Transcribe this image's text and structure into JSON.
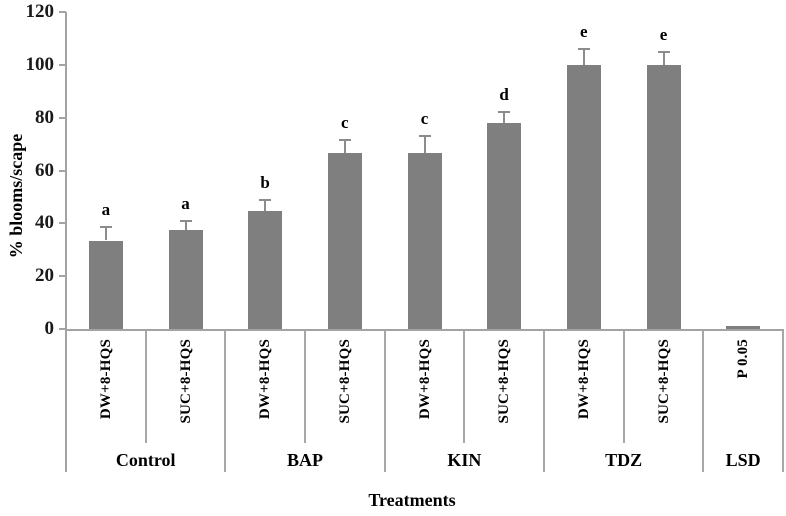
{
  "chart_data": {
    "type": "bar",
    "title": "",
    "ylabel": "% blooms/scape",
    "xlabel": "Treatments",
    "ylim": [
      0,
      120
    ],
    "yticks": [
      0,
      20,
      40,
      60,
      80,
      100,
      120
    ],
    "grid": false,
    "legend": "none",
    "bar_color": "#7f7f7f",
    "error_bar_color": "#8c8c8c",
    "axis_color": "#a3a3a3",
    "groups": [
      {
        "name": "Control",
        "bars": [
          {
            "label": "DW+8-HQS",
            "value": 33.5,
            "error": 5,
            "letter": "a"
          },
          {
            "label": "SUC+8-HQS",
            "value": 37.5,
            "error": 3.5,
            "letter": "a"
          }
        ]
      },
      {
        "name": "BAP",
        "bars": [
          {
            "label": "DW+8-HQS",
            "value": 44.5,
            "error": 4.5,
            "letter": "b"
          },
          {
            "label": "SUC+8-HQS",
            "value": 66.7,
            "error": 5,
            "letter": "c"
          }
        ]
      },
      {
        "name": "KIN",
        "bars": [
          {
            "label": "DW+8-HQS",
            "value": 66.7,
            "error": 6.5,
            "letter": "c"
          },
          {
            "label": "SUC+8-HQS",
            "value": 78,
            "error": 4,
            "letter": "d"
          }
        ]
      },
      {
        "name": "TDZ",
        "bars": [
          {
            "label": "DW+8-HQS",
            "value": 100,
            "error": 6,
            "letter": "e"
          },
          {
            "label": "SUC+8-HQS",
            "value": 100,
            "error": 5,
            "letter": "e"
          }
        ]
      },
      {
        "name": "LSD",
        "bars": [
          {
            "label": "P 0.05",
            "value": 1.2,
            "error": 0,
            "letter": ""
          }
        ]
      }
    ]
  }
}
